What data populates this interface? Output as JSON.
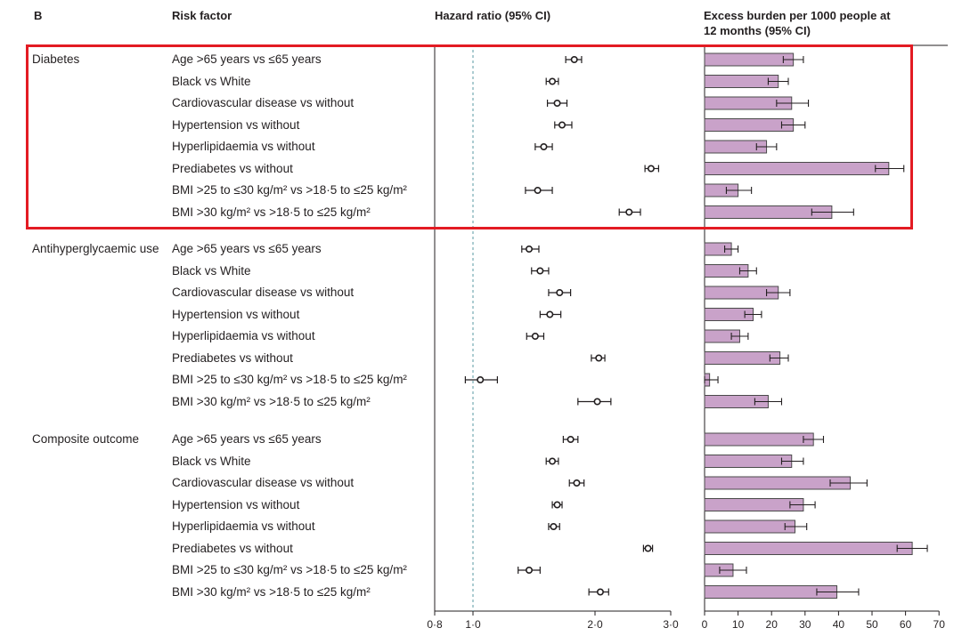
{
  "panel": {
    "letter": "B",
    "risk_header": "Risk factor",
    "hr_header": "Hazard ratio (95% CI)",
    "burden_header_line1": "Excess burden per 1000 people at",
    "burden_header_line2": "12 months (95% CI)"
  },
  "colors": {
    "bar_fill": "#c9a2c9",
    "bar_stroke": "#4a4a4a",
    "highlight": "#e31b23",
    "reference_line": "#7fb0b8"
  },
  "chart_data": [
    {
      "type": "forest",
      "title": "Hazard ratio (95% CI)",
      "xlim": [
        0.8,
        3.0
      ],
      "ticks": [
        "0·8",
        "1·0",
        "2·0",
        "3·0"
      ],
      "reference": 1.0,
      "groups": [
        {
          "name": "Diabetes",
          "rows": [
            {
              "label": "Age >65 years vs ≤65 years",
              "hr": 1.83,
              "lo": 1.76,
              "hi": 1.89
            },
            {
              "label": "Black vs White",
              "hr": 1.65,
              "lo": 1.6,
              "hi": 1.7
            },
            {
              "label": "Cardiovascular disease vs without",
              "hr": 1.69,
              "lo": 1.61,
              "hi": 1.77
            },
            {
              "label": "Hypertension vs without",
              "hr": 1.73,
              "lo": 1.67,
              "hi": 1.81
            },
            {
              "label": "Hyperlipidaemia vs without",
              "hr": 1.58,
              "lo": 1.51,
              "hi": 1.65
            },
            {
              "label": "Prediabetes vs without",
              "hr": 2.74,
              "lo": 2.66,
              "hi": 2.84
            },
            {
              "label": "BMI >25 to ≤30 kg/m² vs >18·5 to ≤25 kg/m²",
              "hr": 1.53,
              "lo": 1.43,
              "hi": 1.65
            },
            {
              "label": "BMI >30 kg/m² vs >18·5 to ≤25 kg/m²",
              "hr": 2.45,
              "lo": 2.32,
              "hi": 2.6
            }
          ]
        },
        {
          "name": "Antihyperglycaemic use",
          "rows": [
            {
              "label": "Age >65 years vs ≤65 years",
              "hr": 1.46,
              "lo": 1.4,
              "hi": 1.54
            },
            {
              "label": "Black vs White",
              "hr": 1.55,
              "lo": 1.48,
              "hi": 1.62
            },
            {
              "label": "Cardiovascular disease vs without",
              "hr": 1.71,
              "lo": 1.62,
              "hi": 1.8
            },
            {
              "label": "Hypertension vs without",
              "hr": 1.63,
              "lo": 1.55,
              "hi": 1.72
            },
            {
              "label": "Hyperlipidaemia vs without",
              "hr": 1.51,
              "lo": 1.44,
              "hi": 1.58
            },
            {
              "label": "Prediabetes vs without",
              "hr": 2.05,
              "lo": 1.97,
              "hi": 2.13
            },
            {
              "label": "BMI >25 to ≤30 kg/m² vs >18·5 to ≤25 kg/m²",
              "hr": 1.06,
              "lo": 0.96,
              "hi": 1.2
            },
            {
              "label": "BMI >30 kg/m² vs >18·5 to ≤25 kg/m²",
              "hr": 2.03,
              "lo": 1.86,
              "hi": 2.21
            }
          ]
        },
        {
          "name": "Composite outcome",
          "rows": [
            {
              "label": "Age >65 years vs ≤65 years",
              "hr": 1.8,
              "lo": 1.74,
              "hi": 1.86
            },
            {
              "label": "Black vs White",
              "hr": 1.65,
              "lo": 1.6,
              "hi": 1.7
            },
            {
              "label": "Cardiovascular disease vs without",
              "hr": 1.85,
              "lo": 1.79,
              "hi": 1.91
            },
            {
              "label": "Hypertension vs without",
              "hr": 1.69,
              "lo": 1.65,
              "hi": 1.73
            },
            {
              "label": "Hyperlipidaemia vs without",
              "hr": 1.66,
              "lo": 1.62,
              "hi": 1.71
            },
            {
              "label": "Prediabetes vs without",
              "hr": 2.7,
              "lo": 2.64,
              "hi": 2.76
            },
            {
              "label": "BMI >25 to ≤30 kg/m² vs >18·5 to ≤25 kg/m²",
              "hr": 1.46,
              "lo": 1.37,
              "hi": 1.55
            },
            {
              "label": "BMI >30 kg/m² vs >18·5 to ≤25 kg/m²",
              "hr": 2.07,
              "lo": 1.95,
              "hi": 2.18
            }
          ]
        }
      ]
    },
    {
      "type": "bar",
      "title": "Excess burden per 1000 people at 12 months (95% CI)",
      "orientation": "horizontal",
      "xlim": [
        0,
        70
      ],
      "ticks": [
        0,
        10,
        20,
        30,
        40,
        50,
        60,
        70
      ],
      "groups": [
        {
          "name": "Diabetes",
          "values": [
            26.5,
            22.0,
            26.0,
            26.5,
            18.5,
            55.0,
            10.0,
            38.0
          ],
          "lo": [
            23.5,
            19.0,
            21.5,
            23.0,
            15.5,
            51.0,
            6.5,
            32.0
          ],
          "hi": [
            29.5,
            25.0,
            31.0,
            30.0,
            21.5,
            59.5,
            14.0,
            44.5
          ]
        },
        {
          "name": "Antihyperglycaemic use",
          "values": [
            8.0,
            13.0,
            22.0,
            14.5,
            10.5,
            22.5,
            1.5,
            19.0
          ],
          "lo": [
            6.0,
            10.5,
            18.5,
            12.0,
            8.0,
            19.5,
            0.0,
            15.0
          ],
          "hi": [
            10.0,
            15.5,
            25.5,
            17.0,
            13.0,
            25.0,
            4.0,
            23.0
          ]
        },
        {
          "name": "Composite outcome",
          "values": [
            32.5,
            26.0,
            43.5,
            29.5,
            27.0,
            62.0,
            8.5,
            39.5
          ],
          "lo": [
            29.5,
            23.0,
            37.5,
            25.5,
            24.0,
            57.5,
            4.5,
            33.5
          ],
          "hi": [
            35.5,
            29.5,
            48.5,
            33.0,
            30.5,
            66.5,
            12.5,
            46.0
          ]
        }
      ]
    }
  ]
}
